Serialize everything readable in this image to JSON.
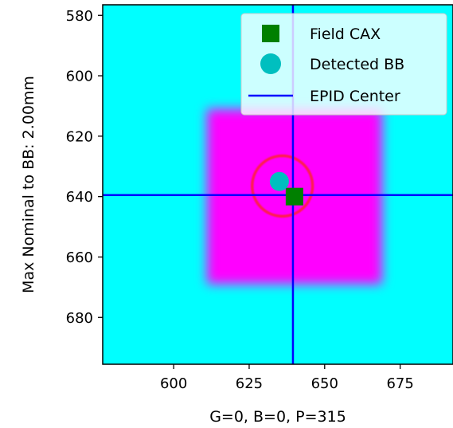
{
  "chart_data": {
    "type": "scatter",
    "title": "",
    "xlabel": "G=0, B=0, P=315",
    "ylabel": "Max Nominal to BB: 2.00mm",
    "xlim": [
      576.5,
      692.5
    ],
    "ylim": [
      695.5,
      576.5
    ],
    "y_inverted": true,
    "xticks": [
      600,
      625,
      650,
      675
    ],
    "yticks": [
      580,
      600,
      620,
      640,
      660,
      680
    ],
    "grid": false,
    "legend_position": "top-right",
    "background": {
      "color": "#00ffff",
      "field_color": "#ff00ff",
      "field_x": [
        611,
        669
      ],
      "field_y": [
        611,
        669
      ]
    },
    "bb_ring": {
      "center": [
        636.0,
        636.5
      ],
      "radius": 10,
      "color": "#ff1a50"
    },
    "epid_center": {
      "x": 639.5,
      "y": 639.5,
      "color": "#0000ff"
    },
    "series": [
      {
        "name": "Field CAX",
        "marker": "square",
        "color": "#008000",
        "x": [
          640.0
        ],
        "y": [
          640.0
        ]
      },
      {
        "name": "Detected BB",
        "marker": "circle",
        "color": "#00bfbf",
        "x": [
          635.0
        ],
        "y": [
          635.0
        ]
      },
      {
        "name": "EPID Center",
        "marker": "line",
        "color": "#0000ff"
      }
    ]
  }
}
